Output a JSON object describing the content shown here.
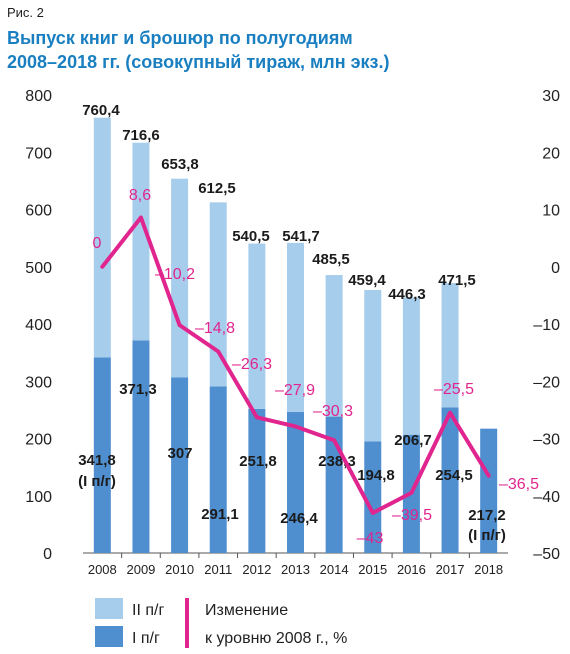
{
  "figure_label": "Рис. 2",
  "title_line1": "Выпуск книг и брошюр по полугодиям",
  "title_line2": "2008–2018 гг. (совокупный тираж, млн экз.)",
  "colors": {
    "h2": "#a7cdec",
    "h1": "#4f8fcf",
    "change": "#e0258e",
    "title": "#1a7fc1"
  },
  "chart_data": {
    "type": "bar",
    "stacked": true,
    "categories": [
      "2008",
      "2009",
      "2010",
      "2011",
      "2012",
      "2013",
      "2014",
      "2015",
      "2016",
      "2017",
      "2018"
    ],
    "series": [
      {
        "name": "I п/г",
        "values": [
          341.8,
          371.3,
          307,
          291.1,
          251.8,
          246.4,
          238.3,
          194.8,
          206.7,
          254.5,
          217.2
        ]
      },
      {
        "name": "II п/г",
        "values": [
          418.6,
          345.3,
          346.8,
          321.4,
          288.7,
          295.3,
          247.2,
          264.6,
          239.6,
          217.0,
          null
        ]
      }
    ],
    "total_labels": [
      "760,4",
      "716,6",
      "653,8",
      "612,5",
      "540,5",
      "541,7",
      "485,5",
      "459,4",
      "446,3",
      "471,5",
      ""
    ],
    "h1_labels": [
      "341,8",
      "371,3",
      "307",
      "291,1",
      "251,8",
      "246,4",
      "238,3",
      "194,8",
      "206,7",
      "254,5",
      "217,2"
    ],
    "h1_note_2008": "(I п/г)",
    "h1_note_2018": "(I п/г)",
    "change_series": {
      "name": "Изменение к уровню 2008 г., %",
      "values": [
        0,
        8.6,
        -10.2,
        -14.8,
        -26.3,
        -27.9,
        -30.3,
        -43,
        -39.5,
        -25.5,
        -36.5
      ],
      "labels": [
        "0",
        "8,6",
        "–10,2",
        "–14,8",
        "–26,3",
        "–27,9",
        "–30,3",
        "–43",
        "–39,5",
        "–25,5",
        "–36,5"
      ]
    },
    "y_left": {
      "ylim": [
        0,
        800
      ],
      "ticks": [
        "0",
        "100",
        "200",
        "300",
        "400",
        "500",
        "600",
        "700",
        "800"
      ]
    },
    "y_right": {
      "ylim": [
        -50,
        30
      ],
      "ticks": [
        "–50",
        "–40",
        "–30",
        "–20",
        "–10",
        "0",
        "10",
        "20",
        "30"
      ]
    },
    "legend": {
      "h2_label": "II п/г",
      "h1_label": "I п/г",
      "change_label_line1": "Изменение",
      "change_label_line2": "к уровню 2008 г., %"
    }
  }
}
